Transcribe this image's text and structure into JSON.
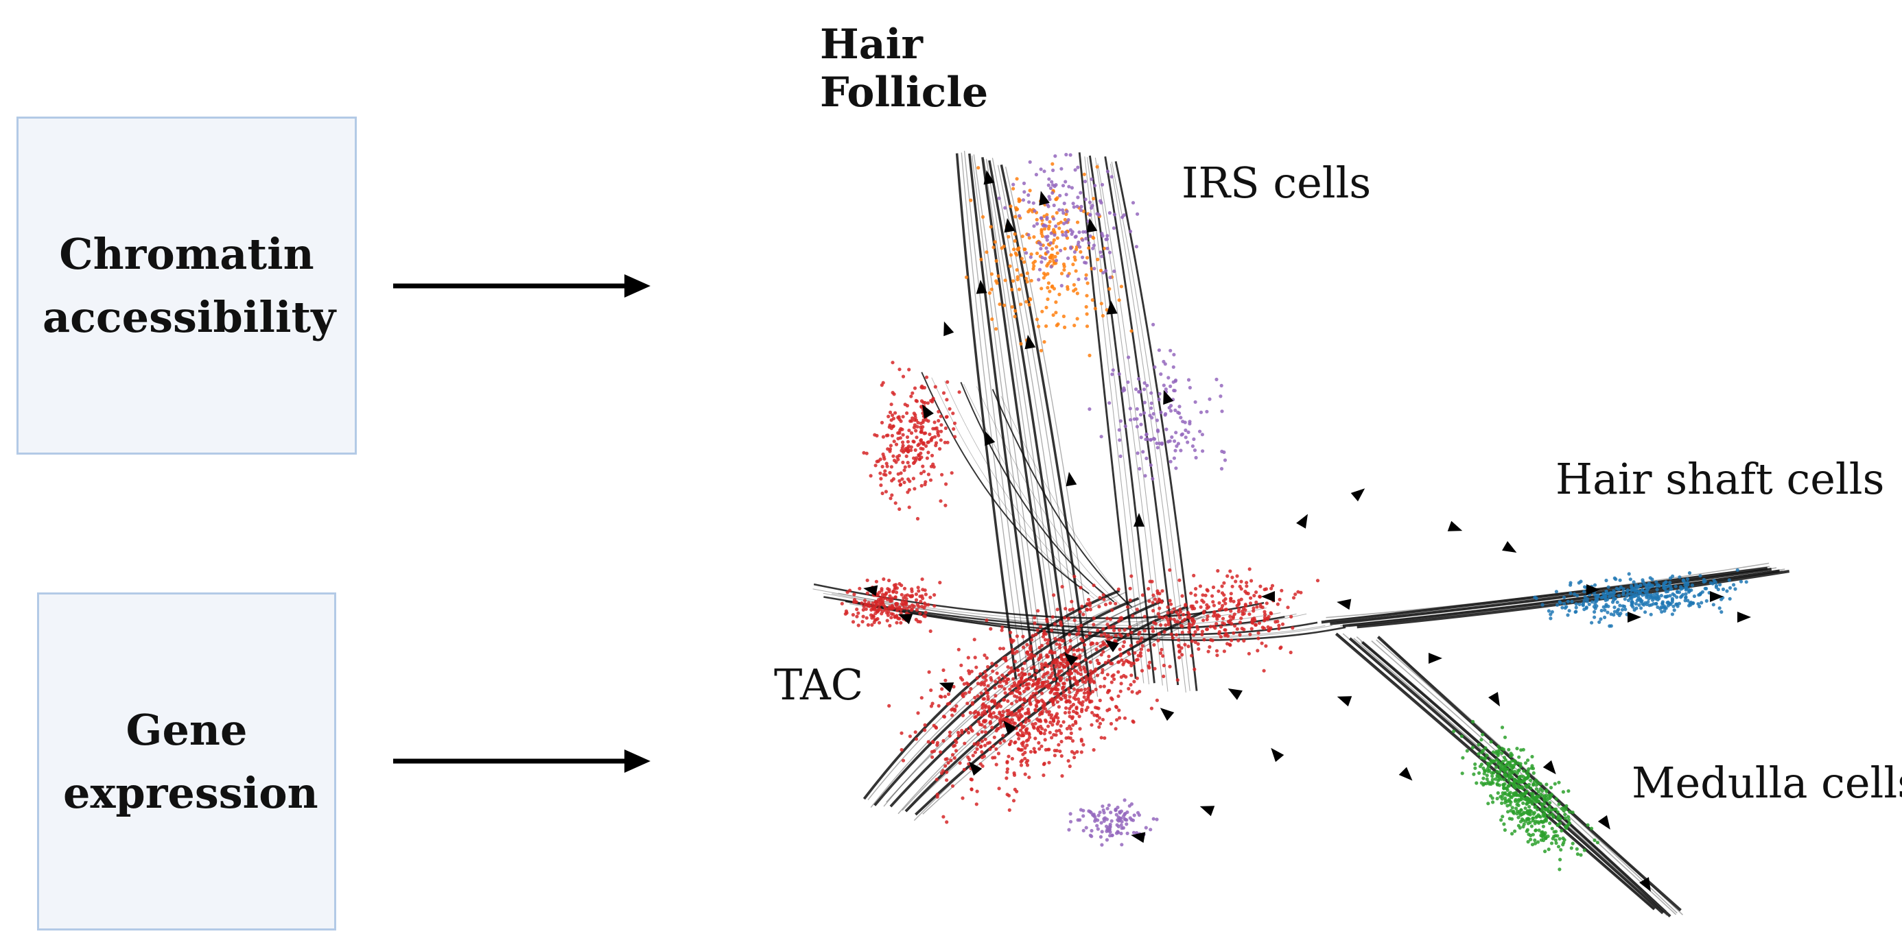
{
  "title": "Hair Follicle",
  "inputs": {
    "chromatin_label": "Chromatin accessibility",
    "gene_label": "Gene expression"
  },
  "plot_labels": {
    "irs": "IRS cells",
    "hair_shaft": "Hair shaft cells",
    "tac": "TAC",
    "medulla": "Medulla cells"
  },
  "colors": {
    "box_fill": "#f2f5fa",
    "box_border": "#b3cae6",
    "tac_cells": "#d62728",
    "irs_cells_a": "#ff7f0e",
    "irs_cells_b": "#9467bd",
    "hair_shaft_cells": "#1f77b4",
    "medulla_cells": "#2ca02c",
    "streamlines": "#111111"
  }
}
